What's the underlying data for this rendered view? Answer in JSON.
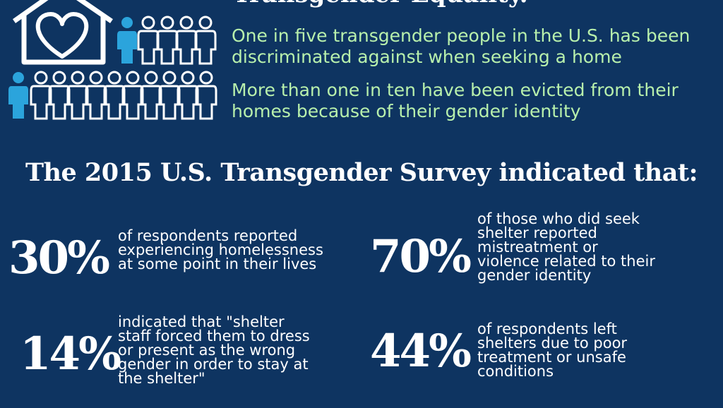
{
  "header": {
    "title": "Transgender Equality."
  },
  "facts": [
    "One in five transgender people in the U.S. has been discriminated against when seeking a home",
    "More than one in ten have been evicted from their homes because of their gender identity"
  ],
  "survey": {
    "heading": "The 2015 U.S. Transgender Survey indicated that:",
    "stats": [
      {
        "percent": "30%",
        "text": "of respondents reported experiencing homelessness at some point in their lives"
      },
      {
        "percent": "70%",
        "text": "of those who did seek shelter reported mistreatment or violence related to their gender identity"
      },
      {
        "percent": "14%",
        "text": "indicated that \"shelter staff forced them to dress or present as the wrong gender in order to stay at the shelter\""
      },
      {
        "percent": "44%",
        "text": "of respondents left shelters due to poor treatment or unsafe conditions"
      }
    ]
  }
}
